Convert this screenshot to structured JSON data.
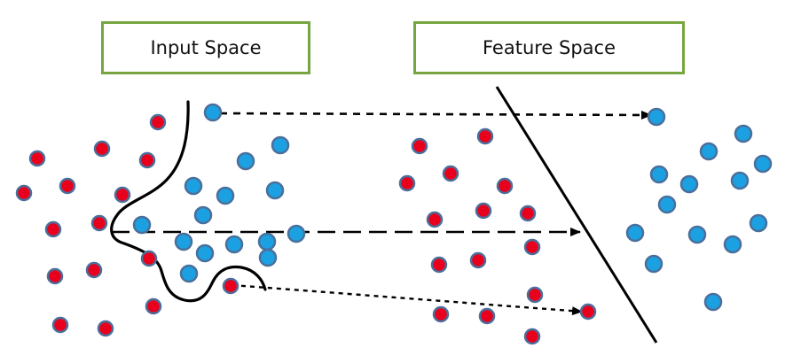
{
  "labels": {
    "input_space": "Input Space",
    "feature_space": "Feature Space"
  },
  "colors": {
    "class_red": "#e8001c",
    "class_blue": "#1ba1e2",
    "point_border": "#4a6f9b",
    "box_border": "#77a540",
    "line": "#000000"
  }
}
